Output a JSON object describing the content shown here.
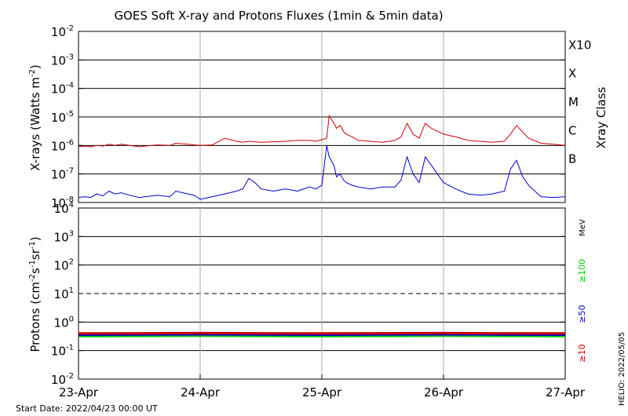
{
  "chart_data": [
    {
      "type": "line",
      "title": "GOES Soft X-ray and Protons Fluxes   (1min & 5min data)",
      "ylabel_main": "X-rays (Watts m",
      "ylabel_exp": "-2",
      "ylabel_close": ")",
      "y_scale": "log",
      "ylim": [
        1e-08,
        0.01
      ],
      "y_ticks": [
        {
          "exp": "-8",
          "value": 1e-08
        },
        {
          "exp": "-7",
          "value": 1e-07
        },
        {
          "exp": "-6",
          "value": 1e-06
        },
        {
          "exp": "-5",
          "value": 1e-05
        },
        {
          "exp": "-4",
          "value": 0.0001
        },
        {
          "exp": "-3",
          "value": 0.001
        },
        {
          "exp": "-2",
          "value": 0.01
        }
      ],
      "right_label": "Xray Class",
      "classes": [
        {
          "label": "B",
          "value": 1e-07
        },
        {
          "label": "C",
          "value": 1e-06
        },
        {
          "label": "M",
          "value": 1e-05
        },
        {
          "label": "X",
          "value": 0.0001
        },
        {
          "label": "X10",
          "value": 0.001
        }
      ],
      "grid": "horizontal solid lines at each decade; vertical gray lines at each day",
      "series": [
        {
          "color": "#cc0000",
          "x": [
            0,
            0.05,
            0.1,
            0.15,
            0.2,
            0.25,
            0.3,
            0.35,
            0.42,
            0.5,
            0.6,
            0.65,
            0.75,
            0.8,
            0.9,
            0.95,
            1.0,
            1.1,
            1.2,
            1.3,
            1.35,
            1.4,
            1.45,
            1.5,
            1.6,
            1.7,
            1.8,
            1.9,
            1.95,
            2.0,
            2.04,
            2.06,
            2.1,
            2.12,
            2.15,
            2.18,
            2.2,
            2.25,
            2.3,
            2.4,
            2.5,
            2.6,
            2.65,
            2.7,
            2.75,
            2.8,
            2.85,
            2.9,
            3.0,
            3.1,
            3.2,
            3.3,
            3.4,
            3.5,
            3.55,
            3.6,
            3.65,
            3.7,
            3.8,
            3.9,
            4.0
          ],
          "y": [
            9e-07,
            9.5e-07,
            9e-07,
            1e-06,
            9.5e-07,
            1.1e-06,
            1e-06,
            1.1e-06,
            1e-06,
            9e-07,
            1e-06,
            1.05e-06,
            1e-06,
            1.2e-06,
            1.1e-06,
            1.05e-06,
            1e-06,
            1.05e-06,
            1.8e-06,
            1.4e-06,
            1.3e-06,
            1.4e-06,
            1.35e-06,
            1.3e-06,
            1.35e-06,
            1.4e-06,
            1.5e-06,
            1.5e-06,
            1.4e-06,
            1.6e-06,
            1.8e-06,
            1.1e-05,
            6e-06,
            4e-06,
            5e-06,
            3e-06,
            2.5e-06,
            2e-06,
            1.5e-06,
            1.4e-06,
            1.3e-06,
            1.5e-06,
            2e-06,
            6e-06,
            2.5e-06,
            1.8e-06,
            6e-06,
            4e-06,
            2.5e-06,
            2e-06,
            1.5e-06,
            1.4e-06,
            1.3e-06,
            1.4e-06,
            2.5e-06,
            5e-06,
            3e-06,
            1.8e-06,
            1.2e-06,
            1.1e-06,
            1e-06
          ]
        },
        {
          "color": "#0000cc",
          "x": [
            0,
            0.05,
            0.1,
            0.15,
            0.2,
            0.25,
            0.3,
            0.35,
            0.42,
            0.5,
            0.6,
            0.65,
            0.75,
            0.8,
            0.9,
            0.95,
            1.0,
            1.1,
            1.2,
            1.3,
            1.35,
            1.4,
            1.45,
            1.5,
            1.6,
            1.7,
            1.8,
            1.9,
            1.95,
            2.0,
            2.04,
            2.06,
            2.1,
            2.12,
            2.15,
            2.18,
            2.2,
            2.25,
            2.3,
            2.4,
            2.5,
            2.6,
            2.65,
            2.7,
            2.75,
            2.8,
            2.85,
            2.9,
            3.0,
            3.1,
            3.2,
            3.3,
            3.4,
            3.5,
            3.55,
            3.6,
            3.65,
            3.7,
            3.8,
            3.9,
            4.0
          ],
          "y": [
            1.5e-08,
            1.6e-08,
            1.5e-08,
            2e-08,
            1.7e-08,
            2.5e-08,
            2e-08,
            2.2e-08,
            1.8e-08,
            1.5e-08,
            1.7e-08,
            1.8e-08,
            1.6e-08,
            2.5e-08,
            2e-08,
            1.8e-08,
            1.3e-08,
            1.6e-08,
            2e-08,
            2.5e-08,
            3e-08,
            7e-08,
            5e-08,
            3e-08,
            2.5e-08,
            3e-08,
            2.5e-08,
            3.5e-08,
            3e-08,
            4e-08,
            1e-06,
            4e-07,
            2e-07,
            8e-08,
            1e-07,
            6e-08,
            5e-08,
            4e-08,
            3.5e-08,
            3e-08,
            3.5e-08,
            3.5e-08,
            6e-08,
            4e-07,
            1e-07,
            5e-08,
            4e-07,
            2e-07,
            5e-08,
            3e-08,
            2e-08,
            1.8e-08,
            2e-08,
            2.5e-08,
            1.5e-07,
            3e-07,
            8e-08,
            4e-08,
            1.6e-08,
            1.5e-08,
            1.6e-08
          ]
        }
      ]
    },
    {
      "type": "line",
      "ylabel_main": "Protons (cm",
      "ylabel_exp1": "-2",
      "ylabel_mid1": "s",
      "ylabel_exp2": "-1",
      "ylabel_mid2": "sr",
      "ylabel_exp3": "-1",
      "ylabel_close": ")",
      "y_scale": "log",
      "ylim": [
        0.01,
        10000.0
      ],
      "y_ticks": [
        {
          "base": "10",
          "exp": "-2",
          "value": 0.01
        },
        {
          "base": "10",
          "exp": "-1",
          "value": 0.1
        },
        {
          "base": "10",
          "exp": "0",
          "value": 1
        },
        {
          "base": "10",
          "exp": "1",
          "value": 10
        },
        {
          "base": "10",
          "exp": "2",
          "value": 100
        },
        {
          "base": "10",
          "exp": "3",
          "value": 1000
        },
        {
          "base": "10",
          "exp": "4",
          "value": 10000
        }
      ],
      "threshold": 10,
      "x_ticks": [
        "23-Apr",
        "24-Apr",
        "25-Apr",
        "26-Apr",
        "27-Apr"
      ],
      "legend_unit": "MeV",
      "legend": [
        {
          "label": "≥100",
          "color": "#00cc00"
        },
        {
          "label": "≥50",
          "color": "#0000cc"
        },
        {
          "label": "≥10",
          "color": "#cc0000"
        }
      ],
      "series": [
        {
          "color": "#00cc00",
          "x": [
            0,
            1,
            2,
            3,
            4
          ],
          "y": [
            0.32,
            0.33,
            0.32,
            0.33,
            0.32
          ]
        },
        {
          "color": "#0000cc",
          "x": [
            0,
            1,
            2,
            3,
            4
          ],
          "y": [
            0.36,
            0.37,
            0.36,
            0.37,
            0.36
          ]
        },
        {
          "color": "#cc0000",
          "x": [
            0,
            1,
            2,
            3,
            4
          ],
          "y": [
            0.4,
            0.41,
            0.4,
            0.41,
            0.4
          ]
        }
      ]
    }
  ],
  "footer": {
    "start_date": "Start Date: 2022/04/23 00:00 UT",
    "side_stamp": "HELIO: 2022/05/05"
  }
}
